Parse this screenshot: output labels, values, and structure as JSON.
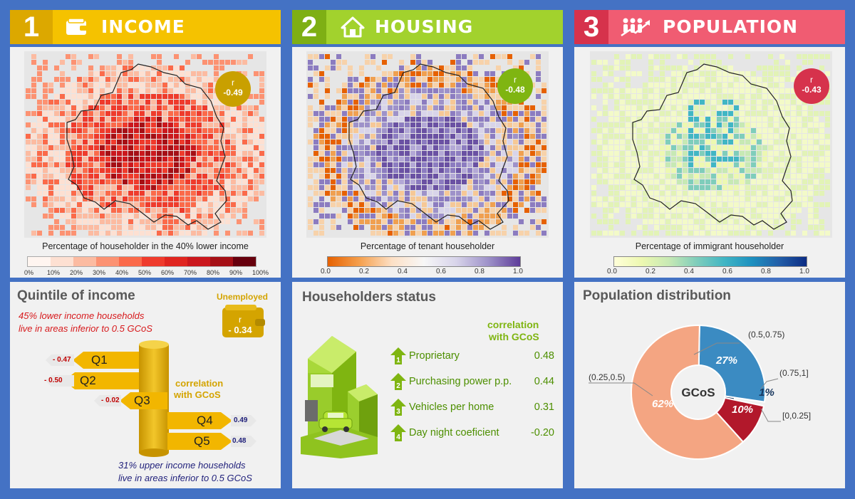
{
  "panels": {
    "income": {
      "number": "1",
      "title": "INCOME",
      "icon": "wallet-icon",
      "color": "#f0b400"
    },
    "housing": {
      "number": "2",
      "title": "HOUSING",
      "icon": "house-icon",
      "color": "#8fc31f"
    },
    "population": {
      "number": "3",
      "title": "POPULATION",
      "icon": "people-growth-icon",
      "color": "#e05269"
    }
  },
  "maps": {
    "income": {
      "badge_r": "r",
      "badge_value": "-0.49",
      "caption": "Percentage of householder in the 40% lower income",
      "legend_ticks": [
        "0%",
        "10%",
        "20%",
        "30%",
        "40%",
        "50%",
        "60%",
        "70%",
        "80%",
        "90%",
        "100%"
      ],
      "legend_colors": [
        "#fff5f0",
        "#fde0d2",
        "#fcbba1",
        "#fc9272",
        "#fb6a4a",
        "#ef3b2c",
        "#e02620",
        "#cb181d",
        "#a50f15",
        "#67000d"
      ]
    },
    "housing": {
      "badge_r": "r",
      "badge_value": "-0.48",
      "caption": "Percentage of tenant householder",
      "legend_ticks": [
        "0.0",
        "0.2",
        "0.4",
        "0.6",
        "0.8",
        "1.0"
      ]
    },
    "population": {
      "badge_r": "r",
      "badge_value": "-0.43",
      "caption": "Percentage of immigrant householder",
      "legend_ticks": [
        "0.0",
        "0.2",
        "0.4",
        "0.6",
        "0.8",
        "1.0"
      ]
    }
  },
  "quintile": {
    "title": "Quintile of income",
    "note_top": [
      "45% lower income households",
      "live in areas inferior to 0.5 GCoS"
    ],
    "note_bottom": [
      "31% upper income households",
      "live in areas inferior to 0.5 GCoS"
    ],
    "unemployed_label": "Unemployed",
    "unemployed_r": "r",
    "unemployed_value": "- 0.34",
    "correlation_label": [
      "correlation",
      "with GCoS"
    ],
    "items": [
      {
        "label": "Q1",
        "value": "- 0.47"
      },
      {
        "label": "Q2",
        "value": "- 0.50"
      },
      {
        "label": "Q3",
        "value": "- 0.02"
      },
      {
        "label": "Q4",
        "value": "0.49"
      },
      {
        "label": "Q5",
        "value": "0.48"
      }
    ]
  },
  "householders": {
    "title": "Householders status",
    "correlation_label": [
      "correlation",
      "with GCoS"
    ],
    "rows": [
      {
        "num": "1",
        "label": "Proprietary",
        "value": "0.48"
      },
      {
        "num": "2",
        "label": "Purchasing power p.p.",
        "value": "0.44"
      },
      {
        "num": "3",
        "label": "Vehicles per home",
        "value": "0.31"
      },
      {
        "num": "4",
        "label": "Day night coeficient",
        "value": "-0.20"
      }
    ]
  },
  "population_dist": {
    "title": "Population distribution",
    "center_label": "GCoS",
    "slices": [
      {
        "label": "(0.5,0.75)",
        "value": "27%",
        "color": "#3b8bc2",
        "fraction": 0.27
      },
      {
        "label": "(0.75,1]",
        "value": "1%",
        "color": "#17365d",
        "fraction": 0.01
      },
      {
        "label": "[0,0.25]",
        "value": "10%",
        "color": "#b2182b",
        "fraction": 0.1
      },
      {
        "label": "(0.25,0.5)",
        "value": "62%",
        "color": "#f4a582",
        "fraction": 0.62
      }
    ]
  }
}
